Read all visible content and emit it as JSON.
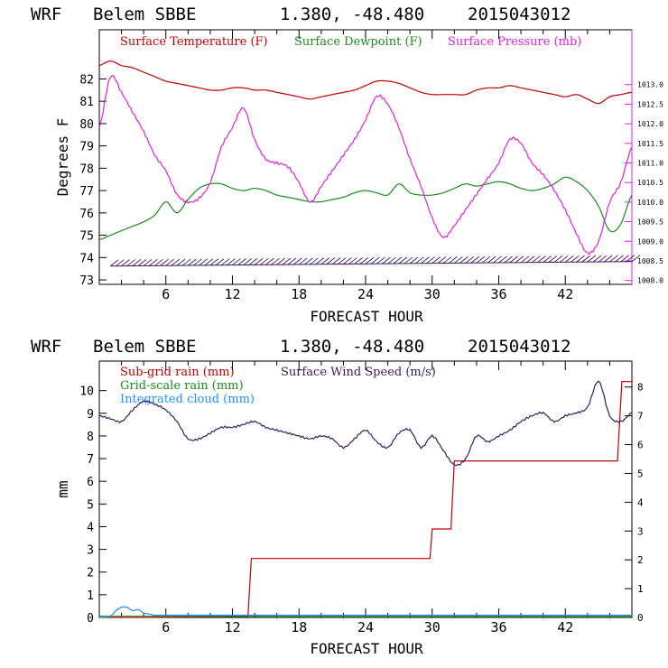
{
  "chart_data": [
    {
      "type": "line",
      "title": {
        "model": "WRF",
        "station": "Belem SBBE",
        "coords": "1.380, -48.480",
        "run": "2015043012"
      },
      "xlabel": "FORECAST HOUR",
      "ylabel": "Degrees F",
      "xlim": [
        0,
        48
      ],
      "xticks": [
        "6",
        "12",
        "18",
        "24",
        "30",
        "36",
        "42"
      ],
      "ylim": [
        72.8,
        84.2
      ],
      "yticks": [
        "73",
        "74",
        "75",
        "76",
        "77",
        "78",
        "79",
        "80",
        "81",
        "82"
      ],
      "y2lim": [
        1007.9,
        1014.4
      ],
      "y2ticks": [
        "1008.0",
        "1008.5",
        "1009.0",
        "1009.5",
        "1010.0",
        "1010.5",
        "1011.0",
        "1011.5",
        "1012.0",
        "1012.5",
        "1013.0"
      ],
      "legend": [
        {
          "label": "Surface Temperature (F)",
          "color": "#c00000"
        },
        {
          "label": "Surface Dewpoint (F)",
          "color": "#1a8c1a"
        },
        {
          "label": "Surface Pressure (mb)",
          "color": "#e020e0"
        }
      ],
      "wind_barbs": {
        "color": "#3c1a5a",
        "x_start": 1,
        "x_end": 48,
        "level": 73.7
      },
      "series": [
        {
          "name": "Surface Temperature (F)",
          "color": "#c00000",
          "axis": "left",
          "x": [
            0,
            1,
            2,
            3,
            4,
            5,
            6,
            7,
            8,
            9,
            10,
            11,
            12,
            13,
            14,
            15,
            16,
            17,
            18,
            19,
            20,
            21,
            22,
            23,
            24,
            25,
            26,
            27,
            28,
            29,
            30,
            31,
            32,
            33,
            34,
            35,
            36,
            37,
            38,
            39,
            40,
            41,
            42,
            43,
            44,
            45,
            46,
            47,
            48
          ],
          "y": [
            82.6,
            82.8,
            82.6,
            82.5,
            82.3,
            82.1,
            81.9,
            81.8,
            81.7,
            81.6,
            81.5,
            81.5,
            81.6,
            81.6,
            81.5,
            81.5,
            81.4,
            81.3,
            81.2,
            81.1,
            81.2,
            81.3,
            81.4,
            81.5,
            81.7,
            81.9,
            81.9,
            81.8,
            81.6,
            81.4,
            81.3,
            81.3,
            81.3,
            81.3,
            81.5,
            81.6,
            81.6,
            81.7,
            81.6,
            81.5,
            81.4,
            81.3,
            81.2,
            81.3,
            81.1,
            80.9,
            81.2,
            81.3,
            81.4
          ]
        },
        {
          "name": "Surface Dewpoint (F)",
          "color": "#1a8c1a",
          "axis": "left",
          "x": [
            0,
            1,
            2,
            3,
            4,
            5,
            6,
            7,
            8,
            9,
            10,
            11,
            12,
            13,
            14,
            15,
            16,
            17,
            18,
            19,
            20,
            21,
            22,
            23,
            24,
            25,
            26,
            27,
            28,
            29,
            30,
            31,
            32,
            33,
            34,
            35,
            36,
            37,
            38,
            39,
            40,
            41,
            42,
            43,
            44,
            45,
            46,
            47,
            48
          ],
          "y": [
            74.8,
            75.0,
            75.2,
            75.4,
            75.6,
            75.9,
            76.5,
            76.0,
            76.6,
            77.1,
            77.3,
            77.3,
            77.1,
            77.0,
            77.1,
            77.0,
            76.8,
            76.7,
            76.6,
            76.5,
            76.5,
            76.6,
            76.7,
            76.9,
            77.0,
            76.9,
            76.8,
            77.3,
            76.9,
            76.8,
            76.8,
            76.9,
            77.1,
            77.3,
            77.2,
            77.3,
            77.4,
            77.3,
            77.1,
            77.0,
            77.1,
            77.3,
            77.6,
            77.4,
            77.0,
            76.3,
            75.2,
            75.5,
            76.8
          ]
        },
        {
          "name": "Surface Pressure (mb)",
          "color": "#e020e0",
          "axis": "right",
          "x": [
            0,
            1,
            2,
            3,
            4,
            5,
            6,
            7,
            8,
            9,
            10,
            11,
            12,
            13,
            14,
            15,
            16,
            17,
            18,
            19,
            20,
            21,
            22,
            23,
            24,
            25,
            26,
            27,
            28,
            29,
            30,
            31,
            32,
            33,
            34,
            35,
            36,
            37,
            38,
            39,
            40,
            41,
            42,
            43,
            44,
            45,
            46,
            47,
            48
          ],
          "y": [
            1011.9,
            1013.2,
            1012.8,
            1012.3,
            1011.8,
            1011.2,
            1010.8,
            1010.2,
            1010.0,
            1010.1,
            1010.5,
            1011.4,
            1011.9,
            1012.4,
            1011.6,
            1011.1,
            1011.0,
            1010.9,
            1010.5,
            1010.0,
            1010.4,
            1010.8,
            1011.2,
            1011.6,
            1012.1,
            1012.7,
            1012.5,
            1011.9,
            1011.1,
            1010.4,
            1009.6,
            1009.1,
            1009.4,
            1009.8,
            1010.2,
            1010.6,
            1011.0,
            1011.6,
            1011.5,
            1011.0,
            1010.7,
            1010.3,
            1009.8,
            1009.2,
            1008.7,
            1009.0,
            1010.0,
            1010.5,
            1011.4
          ]
        }
      ]
    },
    {
      "type": "line",
      "title": {
        "model": "WRF",
        "station": "Belem SBBE",
        "coords": "1.380, -48.480",
        "run": "2015043012"
      },
      "xlabel": "FORECAST HOUR",
      "ylabel": "mm",
      "xlim": [
        0,
        48
      ],
      "xticks": [
        "6",
        "12",
        "18",
        "24",
        "30",
        "36",
        "42"
      ],
      "ylim": [
        0,
        11.3
      ],
      "yticks": [
        "0",
        "1",
        "2",
        "3",
        "4",
        "5",
        "6",
        "7",
        "8",
        "9",
        "10"
      ],
      "y2lim": [
        0,
        8.9
      ],
      "y2ticks": [
        "0",
        "1",
        "2",
        "3",
        "4",
        "5",
        "6",
        "7",
        "8"
      ],
      "legend": [
        {
          "label": "Sub-grid rain (mm)",
          "color": "#c00000"
        },
        {
          "label": "Grid-scale rain (mm)",
          "color": "#1a8c1a"
        },
        {
          "label": "Integrated cloud (mm)",
          "color": "#1e90ff"
        },
        {
          "label": "Surface Wind Speed (m/s)",
          "color": "#3c1a5a"
        }
      ],
      "series": [
        {
          "name": "Sub-grid rain (mm)",
          "color": "#c00000",
          "axis": "left",
          "step": true,
          "x": [
            0,
            3,
            13.4,
            13.7,
            29.8,
            30.0,
            31.7,
            32.0,
            46.7,
            47.1,
            48
          ],
          "y": [
            0,
            0,
            0.05,
            2.6,
            2.6,
            3.9,
            3.9,
            6.9,
            6.9,
            10.4,
            10.4
          ]
        },
        {
          "name": "Grid-scale rain (mm)",
          "color": "#1a8c1a",
          "axis": "left",
          "x": [
            0,
            48
          ],
          "y": [
            0.05,
            0.05
          ]
        },
        {
          "name": "Integrated cloud (mm)",
          "color": "#1e90ff",
          "axis": "left",
          "x": [
            0,
            1,
            1.5,
            2,
            2.5,
            3,
            3.5,
            4,
            4.5,
            5,
            5.5,
            6,
            48
          ],
          "y": [
            0,
            0.05,
            0.3,
            0.45,
            0.45,
            0.3,
            0.35,
            0.2,
            0.15,
            0.1,
            0.1,
            0.1,
            0.1
          ]
        },
        {
          "name": "Surface Wind Speed (m/s)",
          "color": "#3c1a5a",
          "axis": "right",
          "x": [
            0,
            1,
            2,
            3,
            4,
            5,
            6,
            7,
            8,
            9,
            10,
            11,
            12,
            13,
            14,
            15,
            16,
            17,
            18,
            19,
            20,
            21,
            22,
            23,
            24,
            25,
            26,
            27,
            28,
            29,
            30,
            31,
            32,
            33,
            34,
            35,
            36,
            37,
            38,
            39,
            40,
            41,
            42,
            43,
            44,
            45,
            46,
            47,
            48
          ],
          "y": [
            7.0,
            6.9,
            6.8,
            7.2,
            7.5,
            7.4,
            7.2,
            6.8,
            6.2,
            6.2,
            6.4,
            6.6,
            6.6,
            6.7,
            6.8,
            6.6,
            6.5,
            6.4,
            6.3,
            6.2,
            6.3,
            6.2,
            5.9,
            6.2,
            6.5,
            6.1,
            5.9,
            6.4,
            6.5,
            5.9,
            6.3,
            5.8,
            5.3,
            5.5,
            6.3,
            6.1,
            6.3,
            6.5,
            6.8,
            7.0,
            7.1,
            6.8,
            7.0,
            7.1,
            7.3,
            8.2,
            7.0,
            6.8,
            7.1
          ]
        }
      ]
    }
  ]
}
